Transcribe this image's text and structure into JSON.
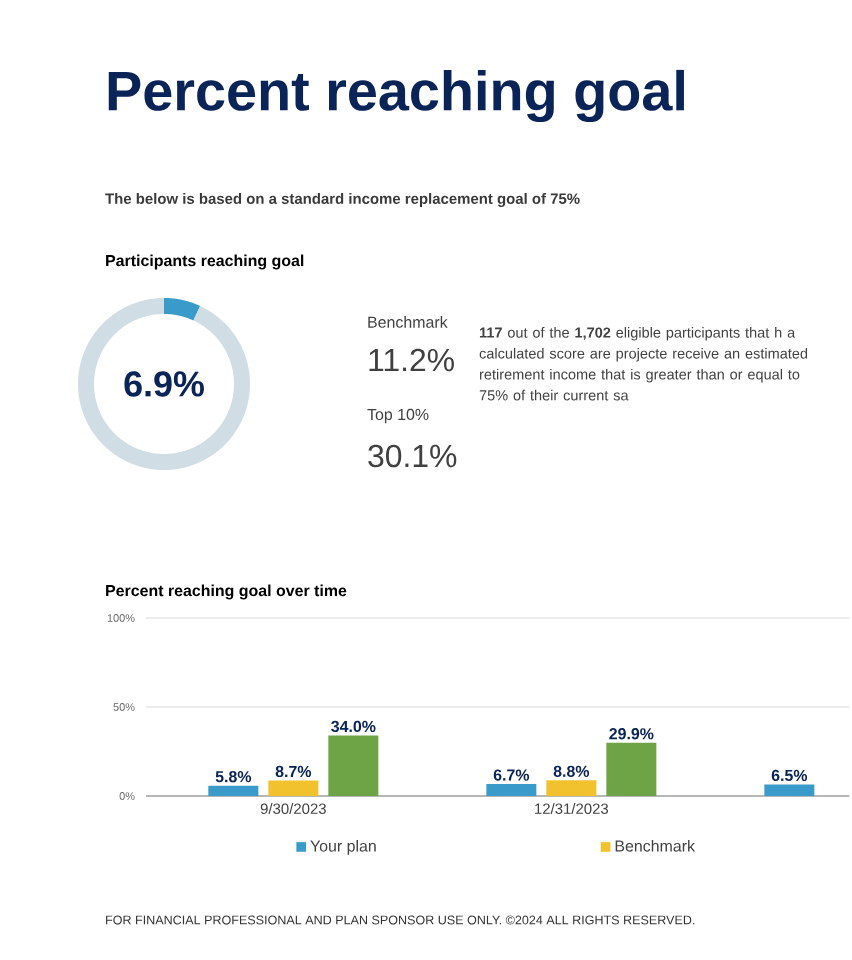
{
  "chart_data": [
    {
      "type": "other",
      "title": "Percent reaching goal",
      "subtitle": "The below is based on a standard income replacement goal of 75%",
      "annotations": [
        "FOR FINANCIAL PROFESSIONAL AND PLAN SPONSOR USE ONLY. ©2024 ALL RIGHTS RESERVED."
      ]
    },
    {
      "type": "donut",
      "title": "Participants reaching goal",
      "categories": [
        null,
        null
      ],
      "values": [
        6.9,
        93.1
      ],
      "colors": [
        "#3a9ac9",
        "#d0dde5"
      ],
      "annotations": [
        "6.9%",
        "Benchmark",
        "11.2%",
        "Top 10%",
        "30.1%",
        "**117** out of the **1,702** eligible participants that h a calculated score are projecte receive an estimated retirement income that is greater than or equal to 75% of their current sa"
      ]
    },
    {
      "type": "bar",
      "title": "Percent reaching goal over time",
      "categories": [
        "9/30/2023",
        "12/31/2023",
        null
      ],
      "series": [
        {
          "name": "Your plan",
          "color": "#3a9ac9",
          "values": [
            5.8,
            6.7,
            6.5
          ],
          "value_labels": [
            "5.8%",
            "6.7%",
            "6.5%"
          ]
        },
        {
          "name": "Benchmark",
          "color": "#f2c12e",
          "values": [
            8.7,
            8.8,
            null
          ],
          "value_labels": [
            "8.7%",
            "8.8%",
            null
          ]
        },
        {
          "color": "#6ea346",
          "values": [
            34.0,
            29.9,
            null
          ],
          "value_labels": [
            "34.0%",
            "29.9%",
            null
          ]
        }
      ],
      "ylim": [
        0,
        100
      ],
      "yticks": [
        {
          "value": 0,
          "label": "0%"
        },
        {
          "value": 50,
          "label": "50%"
        },
        {
          "value": 100,
          "label": "100%"
        }
      ],
      "grid": "y",
      "legend": "bottom"
    }
  ]
}
